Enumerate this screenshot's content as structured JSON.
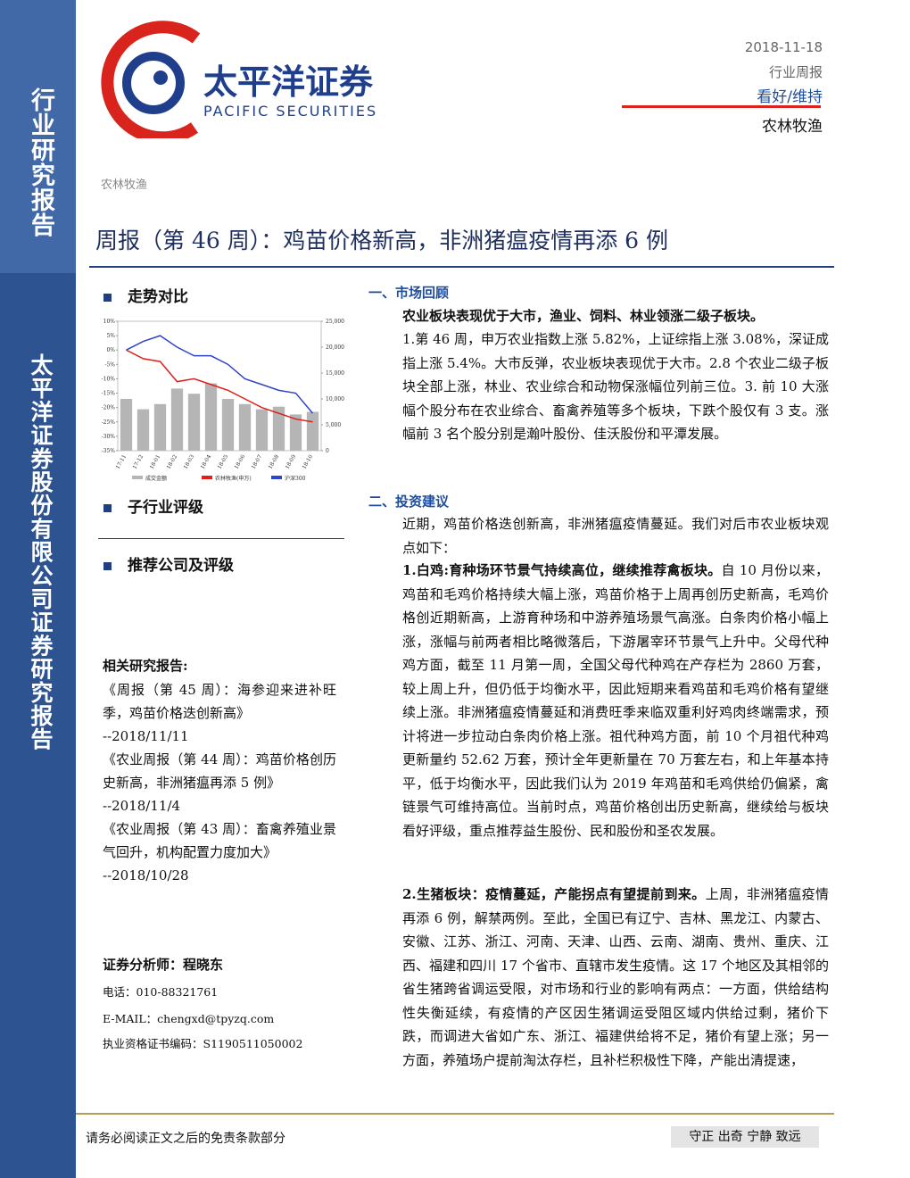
{
  "sidebar": {
    "category": "行业研究报告",
    "company": "太平洋证券股份有限公司证券研究报告"
  },
  "header": {
    "logo_cn": "太平洋证券",
    "logo_en": "PACIFIC SECURITIES",
    "date": "2018-11-18",
    "report_type": "行业周报",
    "rating": "看好/维持",
    "industry": "农林牧渔",
    "section_tag": "农林牧渔",
    "title": "周报（第 46 周）：鸡苗价格新高，非洲猪瘟疫情再添 6 例"
  },
  "left": {
    "trend_heading": "走势对比",
    "sub_rating_heading": "子行业评级",
    "recommend_heading": "推荐公司及评级",
    "related_heading": "相关研究报告:",
    "related": [
      {
        "title": "《周报（第 45 周）：海参迎来进补旺季，鸡苗价格迭创新高》",
        "date": "--2018/11/11"
      },
      {
        "title": "《农业周报（第 44 周）：鸡苗价格创历史新高，非洲猪瘟再添 5 例》",
        "date": "--2018/11/4"
      },
      {
        "title": "《农业周报（第 43 周）：畜禽养殖业景气回升，机构配置力度加大》",
        "date": "--2018/10/28"
      }
    ],
    "analyst": "证券分析师：程晓东",
    "phone": "电话：010-88321761",
    "email": "E-MAIL：chengxd@tpyzq.com",
    "cert": "执业资格证书编码：S1190511050002"
  },
  "chart_data": {
    "type": "bar-line",
    "categories": [
      "17-11",
      "17-12",
      "18-01",
      "18-02",
      "18-03",
      "18-04",
      "18-05",
      "18-06",
      "18-07",
      "18-08",
      "18-09",
      "18-10"
    ],
    "series": [
      {
        "name": "成交金额",
        "color": "#b5b5b5",
        "type": "bar",
        "axis": "y2",
        "values": [
          10000,
          8000,
          9000,
          12000,
          11000,
          13000,
          10000,
          9000,
          8000,
          8500,
          7000,
          7500
        ]
      },
      {
        "name": "农林牧渔(申万)",
        "color": "#e0201b",
        "type": "line",
        "values": [
          0,
          -3,
          -4,
          -11,
          -10,
          -12,
          -14,
          -17,
          -20,
          -22,
          -24,
          -25
        ]
      },
      {
        "name": "沪深300",
        "color": "#2e45c8",
        "type": "line",
        "values": [
          0,
          3,
          5,
          1,
          -2,
          -2,
          -5,
          -10,
          -12,
          -14,
          -15,
          -22
        ]
      }
    ],
    "ylim": [
      -35,
      10
    ],
    "yticks": [
      {
        "value": 10,
        "label": "10%"
      },
      {
        "value": 5,
        "label": "5%"
      },
      {
        "value": 0,
        "label": "0%"
      },
      {
        "value": -5,
        "label": "-5%"
      },
      {
        "value": -10,
        "label": "-10%"
      },
      {
        "value": -15,
        "label": "-15%"
      },
      {
        "value": -20,
        "label": "-20%"
      },
      {
        "value": -25,
        "label": "-25%"
      },
      {
        "value": -30,
        "label": "-30%"
      },
      {
        "value": -35,
        "label": "-35%"
      }
    ],
    "y2lim": [
      0,
      25000
    ],
    "y2ticks": [
      {
        "value": 25000,
        "label": "25,000"
      },
      {
        "value": 20000,
        "label": "20,000"
      },
      {
        "value": 15000,
        "label": "15,000"
      },
      {
        "value": 10000,
        "label": "10,000"
      },
      {
        "value": 5000,
        "label": "5,000"
      },
      0
    ]
  },
  "right": {
    "s1_heading": "一、市场回顾",
    "s1_lead": "农业板块表现优于大市，渔业、饲料、林业领涨二级子板块。",
    "s1_body": "1.第 46 周，申万农业指数上涨 5.82%，上证综指上涨 3.08%，深证成指上涨 5.4%。大市反弹，农业板块表现优于大市。2.8 个农业二级子板块全部上涨，林业、农业综合和动物保涨幅位列前三位。3. 前 10 大涨幅个股分布在农业综合、畜禽养殖等多个板块，下跌个股仅有 3 支。涨幅前 3 名个股分别是瀚叶股份、佳沃股份和平潭发展。",
    "s2_heading": "二、投资建议",
    "s2_intro": "近期，鸡苗价格迭创新高，非洲猪瘟疫情蔓延。我们对后市农业板块观点如下：",
    "points": [
      {
        "lead": "1.白鸡:育种场环节景气持续高位，继续推荐禽板块。",
        "body": "自 10 月份以来，鸡苗和毛鸡价格持续大幅上涨，鸡苗价格于上周再创历史新高，毛鸡价格创近期新高，上游育种场和中游养殖场景气高涨。白条肉价格小幅上涨，涨幅与前两者相比略微落后，下游屠宰环节景气上升中。父母代种鸡方面，截至 11 月第一周，全国父母代种鸡在产存栏为 2860 万套，较上周上升，但仍低于均衡水平，因此短期来看鸡苗和毛鸡价格有望继续上涨。非洲猪瘟疫情蔓延和消费旺季来临双重利好鸡肉终端需求，预计将进一步拉动白条肉价格上涨。祖代种鸡方面，前 10 个月祖代种鸡更新量约 52.62 万套，预计全年更新量在 70 万套左右，和上年基本持平，低于均衡水平，因此我们认为 2019 年鸡苗和毛鸡供给仍偏紧，禽链景气可维持高位。当前时点，鸡苗价格创出历史新高，继续给与板块看好评级，重点推荐益生股份、民和股份和圣农发展。"
      },
      {
        "lead": "2.生猪板块：疫情蔓延，产能拐点有望提前到来。",
        "body": "上周，非洲猪瘟疫情再添 6 例，解禁两例。至此，全国已有辽宁、吉林、黑龙江、内蒙古、安徽、江苏、浙江、河南、天津、山西、云南、湖南、贵州、重庆、江西、福建和四川 17 个省市、直辖市发生疫情。这 17 个地区及其相邻的省生猪跨省调运受限，对市场和行业的影响有两点：一方面，供给结构性失衡延续，有疫情的产区因生猪调运受阻区域内供给过剩，猪价下跌，而调进大省如广东、浙江、福建供给将不足，猪价有望上涨；另一方面，养殖场户提前淘汰存栏，且补栏积极性下降，产能出清提速，"
      }
    ]
  },
  "footer": {
    "disclaimer": "请务必阅读正文之后的免责条款部分",
    "motto": "守正 出奇 宁静 致远"
  }
}
